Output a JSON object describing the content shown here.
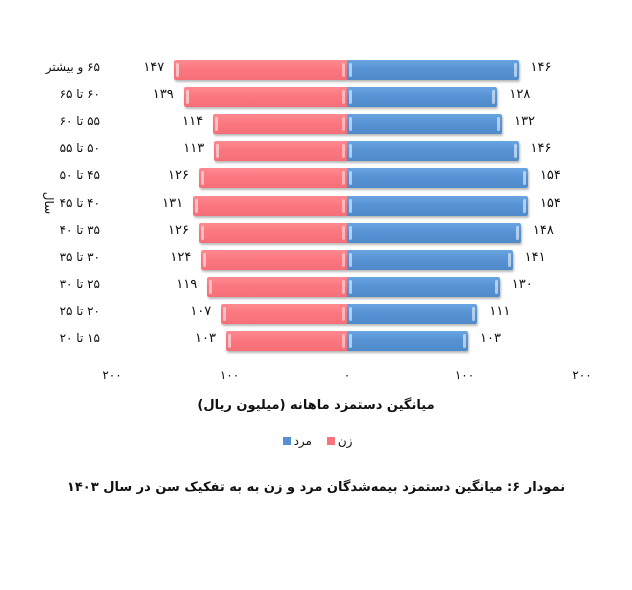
{
  "chart_data": {
    "type": "bar",
    "orientation": "horizontal",
    "layout": "population-pyramid",
    "title": "نمودار ۶: میانگین دستمزد بیمه‌شدگان مرد و زن به به تفکیک سن در سال ۱۴۰۳",
    "xlabel": "میانگین دستمزد ماهانه (میلیون ریال)",
    "ylabel": "سال",
    "xlim": [
      -200,
      200
    ],
    "x_ticks": [
      "۲۰۰",
      "۱۰۰",
      "۰",
      "۱۰۰",
      "۲۰۰"
    ],
    "x_tick_values": [
      -200,
      -100,
      0,
      100,
      200
    ],
    "grid": false,
    "legend_position": "bottom",
    "categories": [
      "۶۵ و بیشتر",
      "۶۰ تا ۶۵",
      "۵۵ تا ۶۰",
      "۵۰ تا ۵۵",
      "۴۵ تا ۵۰",
      "۴۰ تا ۴۵",
      "۳۵ تا ۴۰",
      "۳۰ تا ۳۵",
      "۲۵ تا ۳۰",
      "۲۰ تا ۲۵",
      "۱۵ تا ۲۰"
    ],
    "series": [
      {
        "name": "زن",
        "color": "#f9737c",
        "side": "left",
        "values": [
          147,
          139,
          114,
          113,
          126,
          131,
          126,
          124,
          119,
          107,
          103
        ],
        "labels": [
          "۱۴۷",
          "۱۳۹",
          "۱۱۴",
          "۱۱۳",
          "۱۲۶",
          "۱۳۱",
          "۱۲۶",
          "۱۲۴",
          "۱۱۹",
          "۱۰۷",
          "۱۰۳"
        ]
      },
      {
        "name": "مرد",
        "color": "#5590d0",
        "side": "right",
        "values": [
          146,
          128,
          132,
          146,
          154,
          154,
          148,
          141,
          130,
          111,
          103
        ],
        "labels": [
          "۱۴۶",
          "۱۲۸",
          "۱۳۲",
          "۱۴۶",
          "۱۵۴",
          "۱۵۴",
          "۱۴۸",
          "۱۴۱",
          "۱۳۰",
          "۱۱۱",
          "۱۰۳"
        ]
      }
    ]
  },
  "legend": {
    "female_label": "زن",
    "male_label": "مرد",
    "female_color": "#f9737c",
    "male_color": "#5590d0"
  },
  "axis": {
    "y_title_fragment": "سال"
  }
}
